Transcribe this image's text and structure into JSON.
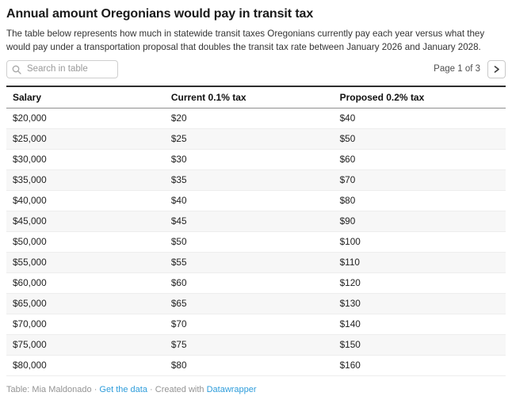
{
  "header": {
    "title": "Annual amount Oregonians would pay in transit tax",
    "description": "The table below represents how much in statewide transit taxes Oregonians currently pay each year versus what they would pay under a transportation proposal that doubles the transit tax rate between January 2026 and January 2028."
  },
  "controls": {
    "search_placeholder": "Search in table",
    "page_indicator": "Page 1 of 3"
  },
  "chart_data": {
    "type": "table",
    "title": "Annual amount Oregonians would pay in transit tax",
    "columns": [
      "Salary",
      "Current 0.1% tax",
      "Proposed 0.2% tax"
    ],
    "rows": [
      [
        "$20,000",
        "$20",
        "$40"
      ],
      [
        "$25,000",
        "$25",
        "$50"
      ],
      [
        "$30,000",
        "$30",
        "$60"
      ],
      [
        "$35,000",
        "$35",
        "$70"
      ],
      [
        "$40,000",
        "$40",
        "$80"
      ],
      [
        "$45,000",
        "$45",
        "$90"
      ],
      [
        "$50,000",
        "$50",
        "$100"
      ],
      [
        "$55,000",
        "$55",
        "$110"
      ],
      [
        "$60,000",
        "$60",
        "$120"
      ],
      [
        "$65,000",
        "$65",
        "$130"
      ],
      [
        "$70,000",
        "$70",
        "$140"
      ],
      [
        "$75,000",
        "$75",
        "$150"
      ],
      [
        "$80,000",
        "$80",
        "$160"
      ]
    ],
    "pagination": {
      "current_page": 1,
      "total_pages": 3,
      "rows_per_page": 13
    }
  },
  "footer": {
    "credit": "Table: Mia Maldonado",
    "separator": "·",
    "get_data_label": "Get the data",
    "created_with": "Created with",
    "datawrapper_label": "Datawrapper"
  },
  "colors": {
    "link_blue": "#2f9ddb",
    "table_top_border": "#2e2e2e",
    "header_rule": "#8f8f8f",
    "row_stripe": "#f7f7f7",
    "search_border": "#cfcfcf"
  }
}
